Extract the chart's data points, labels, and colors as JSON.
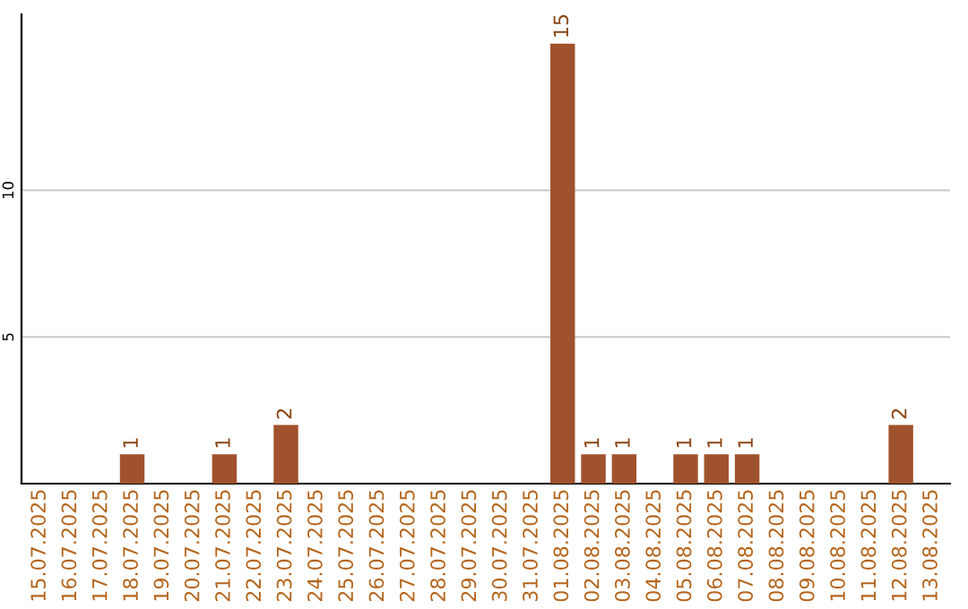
{
  "chart_data": {
    "type": "bar",
    "categories": [
      "15.07.2025",
      "16.07.2025",
      "17.07.2025",
      "18.07.2025",
      "19.07.2025",
      "20.07.2025",
      "21.07.2025",
      "22.07.2025",
      "23.07.2025",
      "24.07.2025",
      "25.07.2025",
      "26.07.2025",
      "27.07.2025",
      "28.07.2025",
      "29.07.2025",
      "30.07.2025",
      "31.07.2025",
      "01.08.2025",
      "02.08.2025",
      "03.08.2025",
      "04.08.2025",
      "05.08.2025",
      "06.08.2025",
      "07.08.2025",
      "08.08.2025",
      "09.08.2025",
      "10.08.2025",
      "11.08.2025",
      "12.08.2025",
      "13.08.2025"
    ],
    "values": [
      0,
      0,
      0,
      1,
      0,
      0,
      1,
      0,
      2,
      0,
      0,
      0,
      0,
      0,
      0,
      0,
      0,
      15,
      1,
      1,
      0,
      1,
      1,
      1,
      0,
      0,
      0,
      0,
      2,
      0
    ],
    "value_labels": [
      null,
      null,
      null,
      "1",
      null,
      null,
      "1",
      null,
      "2",
      null,
      null,
      null,
      null,
      null,
      null,
      null,
      null,
      "15",
      "1",
      "1",
      null,
      "1",
      "1",
      "1",
      null,
      null,
      null,
      null,
      "2",
      null
    ],
    "color": "#a0522d",
    "ylim": [
      0,
      16
    ],
    "yticks": [
      5,
      10
    ],
    "grid": "y"
  }
}
